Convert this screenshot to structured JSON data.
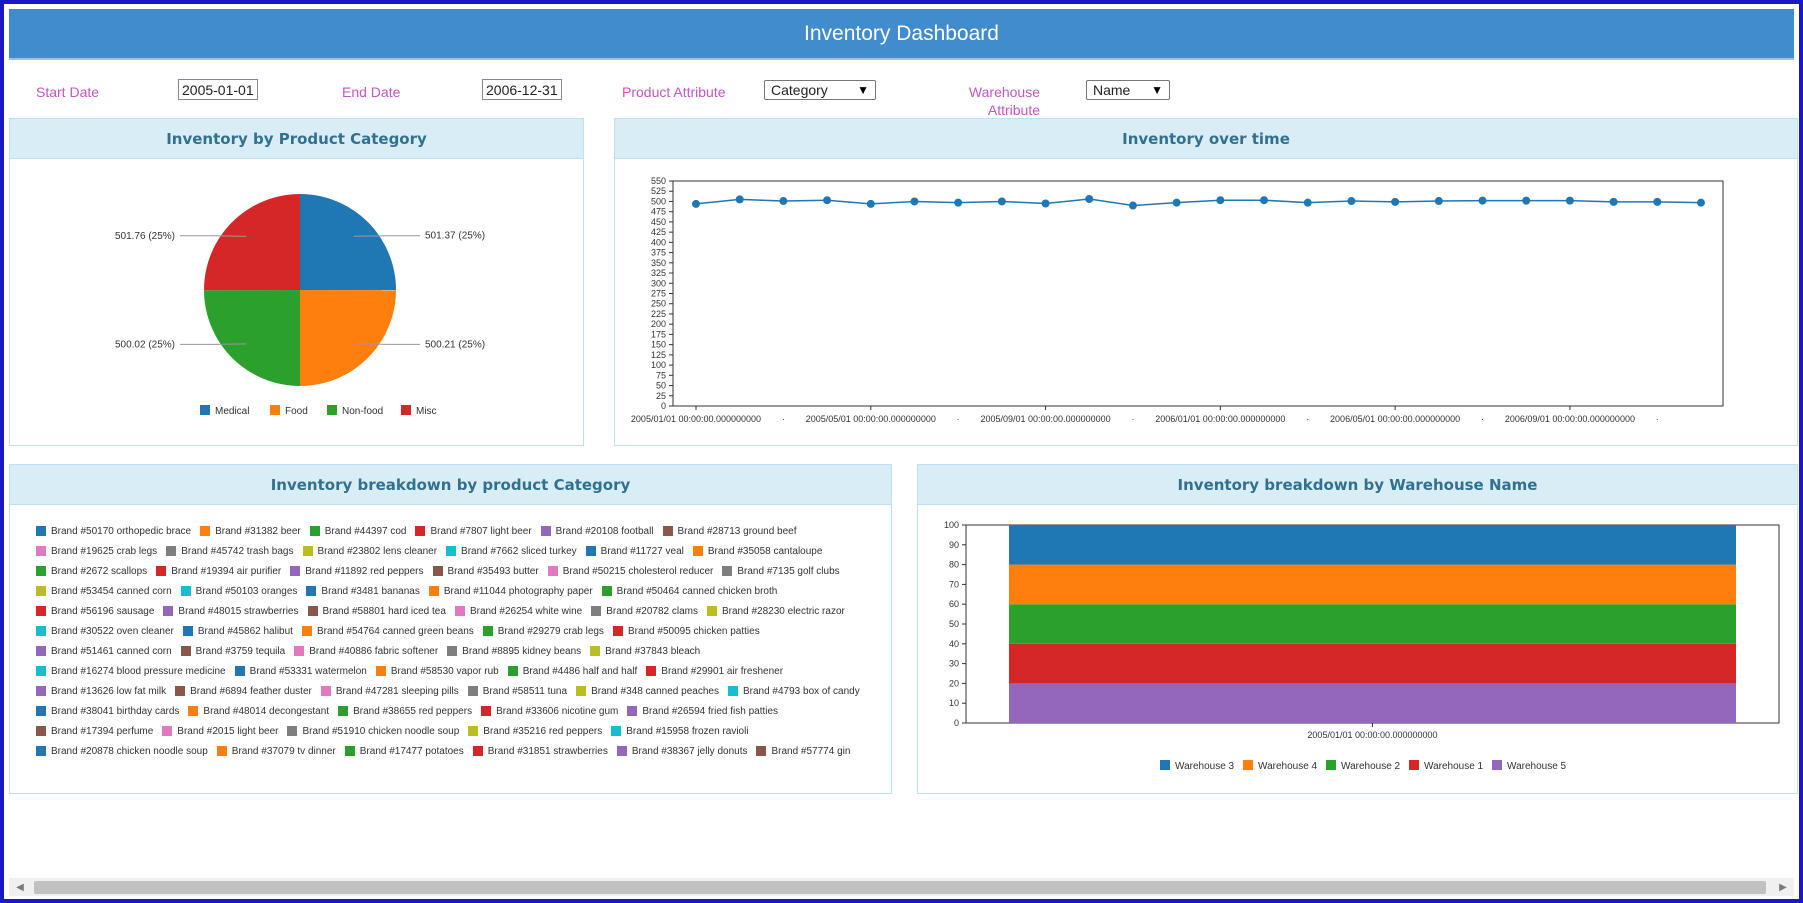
{
  "header": {
    "title": "Inventory Dashboard"
  },
  "filters": {
    "start_label": "Start Date",
    "start_value": "2005-01-01",
    "end_label": "End Date",
    "end_value": "2006-12-31",
    "product_attr_label": "Product Attribute",
    "product_attr_value": "Category",
    "warehouse_attr_label_line1": "Warehouse",
    "warehouse_attr_label_line2": "Attribute",
    "warehouse_attr_value": "Name"
  },
  "panels": {
    "pie_title": "Inventory by Product Category",
    "line_title": "Inventory over time",
    "brands_title": "Inventory breakdown by product Category",
    "warehouse_title": "Inventory breakdown by Warehouse Name"
  },
  "colors": {
    "blue": "#1f77b4",
    "orange": "#ff7f0e",
    "green": "#2ca02c",
    "red": "#d62728",
    "purple": "#9467bd",
    "brown": "#8c564b",
    "pink": "#e377c2",
    "gray": "#7f7f7f",
    "olive": "#bcbd22",
    "cyan": "#17becf"
  },
  "chart_data": [
    {
      "type": "pie",
      "title": "Inventory by Product Category",
      "slices": [
        {
          "name": "Medical",
          "value": 501.37,
          "label": "501.37 (25%)",
          "color": "#1f77b4"
        },
        {
          "name": "Food",
          "value": 500.21,
          "label": "500.21 (25%)",
          "color": "#ff7f0e"
        },
        {
          "name": "Non-food",
          "value": 500.02,
          "label": "500.02 (25%)",
          "color": "#2ca02c"
        },
        {
          "name": "Misc",
          "value": 501.76,
          "label": "501.76 (25%)",
          "color": "#d62728"
        }
      ],
      "legend": [
        "Medical",
        "Food",
        "Non-food",
        "Misc"
      ]
    },
    {
      "type": "line",
      "title": "Inventory over time",
      "ylim": [
        0,
        550
      ],
      "yticks": [
        0,
        25,
        50,
        75,
        100,
        125,
        150,
        175,
        200,
        225,
        250,
        275,
        300,
        325,
        350,
        375,
        400,
        425,
        450,
        475,
        500,
        525,
        550
      ],
      "xtick_labels": [
        "2005/01/01 00:00:00.000000000",
        "2005/05/01 00:00:00.000000000",
        "2005/09/01 00:00:00.000000000",
        "2006/01/01 00:00:00.000000000",
        "2006/05/01 00:00:00.000000000",
        "2006/09/01 00:00:00.000000000"
      ],
      "x": [
        "2005-01",
        "2005-02",
        "2005-03",
        "2005-04",
        "2005-05",
        "2005-06",
        "2005-07",
        "2005-08",
        "2005-09",
        "2005-10",
        "2005-11",
        "2005-12",
        "2006-01",
        "2006-02",
        "2006-03",
        "2006-04",
        "2006-05",
        "2006-06",
        "2006-07",
        "2006-08",
        "2006-09",
        "2006-10",
        "2006-11",
        "2006-12"
      ],
      "values": [
        494,
        505,
        501,
        503,
        494,
        500,
        497,
        500,
        495,
        506,
        490,
        497,
        503,
        503,
        497,
        501,
        499,
        501,
        502,
        502,
        502,
        499,
        499,
        497
      ]
    },
    {
      "type": "legend",
      "title": "Inventory breakdown by product Category",
      "rows": [
        [
          [
            "Brand #50170 orthopedic brace",
            "#1f77b4"
          ],
          [
            "Brand #31382 beer",
            "#ff7f0e"
          ],
          [
            "Brand #44397 cod",
            "#2ca02c"
          ],
          [
            "Brand #7807 light beer",
            "#d62728"
          ],
          [
            "Brand #20108 football",
            "#9467bd"
          ],
          [
            "Brand #28713 ground beef",
            "#8c564b"
          ]
        ],
        [
          [
            "Brand #19625 crab legs",
            "#e377c2"
          ],
          [
            "Brand #45742 trash bags",
            "#7f7f7f"
          ],
          [
            "Brand #23802 lens cleaner",
            "#bcbd22"
          ],
          [
            "Brand #7662 sliced turkey",
            "#17becf"
          ],
          [
            "Brand #11727 veal",
            "#1f77b4"
          ],
          [
            "Brand #35058 cantaloupe",
            "#ff7f0e"
          ]
        ],
        [
          [
            "Brand #2672 scallops",
            "#2ca02c"
          ],
          [
            "Brand #19394 air purifier",
            "#d62728"
          ],
          [
            "Brand #11892 red peppers",
            "#9467bd"
          ],
          [
            "Brand #35493 butter",
            "#8c564b"
          ],
          [
            "Brand #50215 cholesterol reducer",
            "#e377c2"
          ],
          [
            "Brand #7135 golf clubs",
            "#7f7f7f"
          ]
        ],
        [
          [
            "Brand #53454 canned corn",
            "#bcbd22"
          ],
          [
            "Brand #50103 oranges",
            "#17becf"
          ],
          [
            "Brand #3481 bananas",
            "#1f77b4"
          ],
          [
            "Brand #11044 photography paper",
            "#ff7f0e"
          ],
          [
            "Brand #50464 canned chicken broth",
            "#2ca02c"
          ]
        ],
        [
          [
            "Brand #56196 sausage",
            "#d62728"
          ],
          [
            "Brand #48015 strawberries",
            "#9467bd"
          ],
          [
            "Brand #58801 hard iced tea",
            "#8c564b"
          ],
          [
            "Brand #26254 white wine",
            "#e377c2"
          ],
          [
            "Brand #20782 clams",
            "#7f7f7f"
          ],
          [
            "Brand #28230 electric razor",
            "#bcbd22"
          ]
        ],
        [
          [
            "Brand #30522 oven cleaner",
            "#17becf"
          ],
          [
            "Brand #45862 halibut",
            "#1f77b4"
          ],
          [
            "Brand #54764 canned green beans",
            "#ff7f0e"
          ],
          [
            "Brand #29279 crab legs",
            "#2ca02c"
          ],
          [
            "Brand #50095 chicken patties",
            "#d62728"
          ]
        ],
        [
          [
            "Brand #51461 canned corn",
            "#9467bd"
          ],
          [
            "Brand #3759 tequila",
            "#8c564b"
          ],
          [
            "Brand #40886 fabric softener",
            "#e377c2"
          ],
          [
            "Brand #8895 kidney beans",
            "#7f7f7f"
          ],
          [
            "Brand #37843 bleach",
            "#bcbd22"
          ]
        ],
        [
          [
            "Brand #16274 blood pressure medicine",
            "#17becf"
          ],
          [
            "Brand #53331 watermelon",
            "#1f77b4"
          ],
          [
            "Brand #58530 vapor rub",
            "#ff7f0e"
          ],
          [
            "Brand #4486 half and half",
            "#2ca02c"
          ],
          [
            "Brand #29901 air freshener",
            "#d62728"
          ]
        ],
        [
          [
            "Brand #13626 low fat milk",
            "#9467bd"
          ],
          [
            "Brand #6894 feather duster",
            "#8c564b"
          ],
          [
            "Brand #47281 sleeping pills",
            "#e377c2"
          ],
          [
            "Brand #58511 tuna",
            "#7f7f7f"
          ],
          [
            "Brand #348 canned peaches",
            "#bcbd22"
          ],
          [
            "Brand #4793 box of candy",
            "#17becf"
          ]
        ],
        [
          [
            "Brand #38041 birthday cards",
            "#1f77b4"
          ],
          [
            "Brand #48014 decongestant",
            "#ff7f0e"
          ],
          [
            "Brand #38655 red peppers",
            "#2ca02c"
          ],
          [
            "Brand #33606 nicotine gum",
            "#d62728"
          ],
          [
            "Brand #26594 fried fish patties",
            "#9467bd"
          ]
        ],
        [
          [
            "Brand #17394 perfume",
            "#8c564b"
          ],
          [
            "Brand #2015 light beer",
            "#e377c2"
          ],
          [
            "Brand #51910 chicken noodle soup",
            "#7f7f7f"
          ],
          [
            "Brand #35216 red peppers",
            "#bcbd22"
          ],
          [
            "Brand #15958 frozen ravioli",
            "#17becf"
          ]
        ],
        [
          [
            "Brand #20878 chicken noodle soup",
            "#1f77b4"
          ],
          [
            "Brand #37079 tv dinner",
            "#ff7f0e"
          ],
          [
            "Brand #17477 potatoes",
            "#2ca02c"
          ],
          [
            "Brand #31851 strawberries",
            "#d62728"
          ],
          [
            "Brand #38367 jelly donuts",
            "#9467bd"
          ],
          [
            "Brand #57774 gin",
            "#8c564b"
          ]
        ]
      ]
    },
    {
      "type": "bar",
      "stacked": true,
      "title": "Inventory breakdown by Warehouse Name",
      "ylim": [
        0,
        100
      ],
      "yticks": [
        0,
        10,
        20,
        30,
        40,
        50,
        60,
        70,
        80,
        90,
        100
      ],
      "categories": [
        "2005/01/01 00:00:00.000000000"
      ],
      "series": [
        {
          "name": "Warehouse 5",
          "values": [
            20
          ],
          "color": "#9467bd"
        },
        {
          "name": "Warehouse 1",
          "values": [
            20
          ],
          "color": "#d62728"
        },
        {
          "name": "Warehouse 2",
          "values": [
            20
          ],
          "color": "#2ca02c"
        },
        {
          "name": "Warehouse 4",
          "values": [
            20
          ],
          "color": "#ff7f0e"
        },
        {
          "name": "Warehouse 3",
          "values": [
            20
          ],
          "color": "#1f77b4"
        }
      ],
      "legend": [
        "Warehouse 3",
        "Warehouse 4",
        "Warehouse 2",
        "Warehouse 1",
        "Warehouse 5"
      ]
    }
  ],
  "scrollbar": {
    "left_arrow": "◀",
    "right_arrow": "▶"
  }
}
